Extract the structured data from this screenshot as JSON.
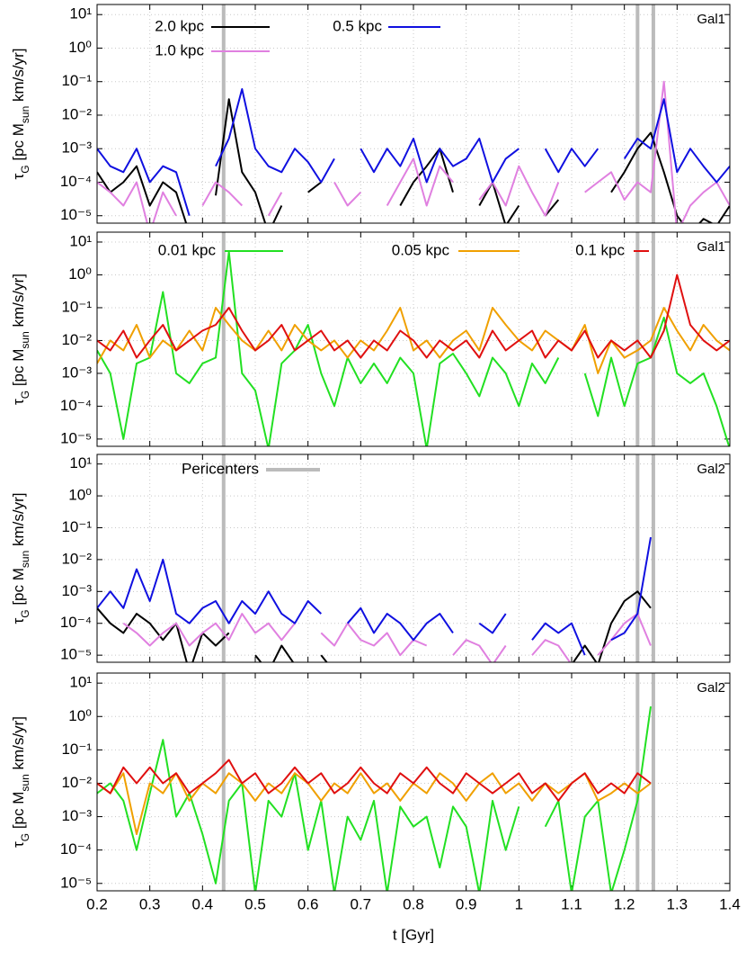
{
  "chart_data": [
    {
      "type": "line",
      "annotation": "Gal1",
      "ylabel": [
        "τ",
        "G",
        " [pc M",
        "sun",
        " km/s/yr]"
      ],
      "log_y": true,
      "grid": true,
      "show_xtick_labels": false,
      "xlim": [
        0.2,
        1.4
      ],
      "xticks": [
        0.2,
        0.3,
        0.4,
        0.5,
        0.6,
        0.7,
        0.8,
        0.9,
        1,
        1.1,
        1.2,
        1.3,
        1.4
      ],
      "ylim": [
        6e-06,
        20
      ],
      "yticks": [
        {
          "value": 1e-05,
          "label": "10⁻⁵"
        },
        {
          "value": 0.0001,
          "label": "10⁻⁴"
        },
        {
          "value": 0.001,
          "label": "10⁻³"
        },
        {
          "value": 0.01,
          "label": "10⁻²"
        },
        {
          "value": 0.1,
          "label": "10⁻¹"
        },
        {
          "value": 1,
          "label": "10⁰"
        },
        {
          "value": 10,
          "label": "10¹"
        }
      ],
      "pericenters": {
        "color": "#bbbbbb",
        "x": [
          0.44,
          1.225,
          1.255
        ]
      },
      "x": [
        0.2,
        0.225,
        0.25,
        0.275,
        0.3,
        0.325,
        0.35,
        0.375,
        0.4,
        0.425,
        0.45,
        0.475,
        0.5,
        0.525,
        0.55,
        0.575,
        0.6,
        0.625,
        0.65,
        0.675,
        0.7,
        0.725,
        0.75,
        0.775,
        0.8,
        0.825,
        0.85,
        0.875,
        0.9,
        0.925,
        0.95,
        0.975,
        1,
        1.025,
        1.05,
        1.075,
        1.1,
        1.125,
        1.15,
        1.175,
        1.2,
        1.225,
        1.25,
        1.275,
        1.3,
        1.325,
        1.35,
        1.375,
        1.4
      ],
      "series": [
        {
          "name": "2.0 kpc",
          "color": "#000000",
          "values": [
            0.0002,
            5e-05,
            0.0001,
            0.0003,
            2e-05,
            0.0001,
            5e-05,
            3e-06,
            null,
            4e-05,
            0.03,
            0.0002,
            5e-05,
            3e-06,
            2e-05,
            null,
            5e-05,
            0.0001,
            null,
            2e-05,
            null,
            8e-06,
            null,
            2e-05,
            0.0001,
            0.0003,
            0.001,
            5e-05,
            null,
            2e-05,
            0.0001,
            5e-06,
            2e-05,
            null,
            1e-05,
            3e-05,
            null,
            2e-05,
            null,
            5e-05,
            0.0002,
            0.001,
            0.003,
            0.0002,
            1e-05,
            3e-06,
            8e-06,
            5e-06,
            2e-05
          ]
        },
        {
          "name": "1.0 kpc",
          "color": "#e080e0",
          "values": [
            0.0001,
            5e-05,
            2e-05,
            0.0001,
            3e-06,
            5e-05,
            1e-05,
            null,
            2e-05,
            0.0001,
            5e-05,
            2e-05,
            null,
            1e-05,
            5e-05,
            null,
            3e-05,
            null,
            0.0001,
            2e-05,
            5e-05,
            null,
            2e-05,
            0.0001,
            0.0005,
            2e-05,
            0.0003,
            0.0001,
            null,
            3e-05,
            0.0001,
            2e-05,
            0.0003,
            5e-05,
            1e-05,
            0.0001,
            null,
            5e-05,
            0.0001,
            0.0002,
            3e-05,
            0.0001,
            5e-05,
            0.1,
            3e-06,
            2e-05,
            5e-05,
            0.0001,
            2e-05
          ]
        },
        {
          "name": "0.5 kpc",
          "color": "#1010e0",
          "values": [
            0.001,
            0.0003,
            0.0002,
            0.001,
            0.0001,
            0.0003,
            0.0002,
            1e-05,
            null,
            0.0003,
            0.002,
            0.06,
            0.001,
            0.0003,
            0.0002,
            0.001,
            0.0004,
            0.0001,
            0.0005,
            null,
            0.001,
            0.0002,
            0.001,
            0.0003,
            0.002,
            0.0001,
            0.001,
            0.0003,
            0.0005,
            0.002,
            0.0001,
            0.0005,
            0.001,
            null,
            0.001,
            0.0002,
            0.001,
            0.0003,
            0.001,
            null,
            0.0005,
            0.002,
            0.001,
            0.03,
            0.0002,
            0.001,
            0.0003,
            0.0001,
            0.0003
          ]
        }
      ]
    },
    {
      "type": "line",
      "annotation": "Gal1",
      "ylabel": [
        "τ",
        "G",
        " [pc M",
        "sun",
        " km/s/yr]"
      ],
      "log_y": true,
      "grid": true,
      "show_xtick_labels": false,
      "xlim": [
        0.2,
        1.4
      ],
      "xticks": [
        0.2,
        0.3,
        0.4,
        0.5,
        0.6,
        0.7,
        0.8,
        0.9,
        1,
        1.1,
        1.2,
        1.3,
        1.4
      ],
      "ylim": [
        6e-06,
        20
      ],
      "yticks": [
        {
          "value": 1e-05,
          "label": "10⁻⁵"
        },
        {
          "value": 0.0001,
          "label": "10⁻⁴"
        },
        {
          "value": 0.001,
          "label": "10⁻³"
        },
        {
          "value": 0.01,
          "label": "10⁻²"
        },
        {
          "value": 0.1,
          "label": "10⁻¹"
        },
        {
          "value": 1,
          "label": "10⁰"
        },
        {
          "value": 10,
          "label": "10¹"
        }
      ],
      "pericenters": {
        "color": "#bbbbbb",
        "x": [
          0.44,
          1.225,
          1.255
        ]
      },
      "x": [
        0.2,
        0.225,
        0.25,
        0.275,
        0.3,
        0.325,
        0.35,
        0.375,
        0.4,
        0.425,
        0.45,
        0.475,
        0.5,
        0.525,
        0.55,
        0.575,
        0.6,
        0.625,
        0.65,
        0.675,
        0.7,
        0.725,
        0.75,
        0.775,
        0.8,
        0.825,
        0.85,
        0.875,
        0.9,
        0.925,
        0.95,
        0.975,
        1,
        1.025,
        1.05,
        1.075,
        1.1,
        1.125,
        1.15,
        1.175,
        1.2,
        1.225,
        1.25,
        1.275,
        1.3,
        1.325,
        1.35,
        1.375,
        1.4
      ],
      "series": [
        {
          "name": "0.01 kpc",
          "color": "#22e022",
          "values": [
            0.005,
            0.001,
            1e-05,
            0.002,
            0.003,
            0.3,
            0.001,
            0.0005,
            0.002,
            0.003,
            5.0,
            0.001,
            0.0003,
            5e-06,
            0.002,
            0.005,
            0.03,
            0.001,
            0.0001,
            0.003,
            0.0005,
            0.002,
            0.0005,
            0.003,
            0.001,
            5e-06,
            0.002,
            0.004,
            0.001,
            0.0002,
            0.003,
            0.001,
            0.0001,
            0.002,
            0.0005,
            0.003,
            null,
            0.001,
            5e-05,
            0.003,
            0.0001,
            0.002,
            0.003,
            0.05,
            0.001,
            0.0005,
            0.001,
            0.0001,
            5e-06
          ]
        },
        {
          "name": "0.05 kpc",
          "color": "#f0a000",
          "values": [
            0.002,
            0.01,
            0.005,
            0.03,
            0.003,
            0.01,
            0.005,
            0.02,
            0.005,
            0.1,
            0.03,
            0.01,
            0.005,
            0.02,
            0.005,
            0.03,
            0.01,
            0.005,
            0.01,
            0.003,
            0.01,
            0.005,
            0.02,
            0.1,
            0.005,
            0.01,
            0.003,
            0.01,
            0.02,
            0.005,
            0.1,
            0.03,
            0.01,
            0.005,
            0.02,
            0.01,
            0.005,
            0.03,
            0.001,
            0.01,
            0.003,
            0.005,
            0.01,
            0.1,
            0.02,
            0.005,
            0.03,
            0.01,
            0.005
          ]
        },
        {
          "name": "0.1 kpc",
          "color": "#e01010",
          "values": [
            0.01,
            0.005,
            0.02,
            0.003,
            0.01,
            0.03,
            0.005,
            0.01,
            0.02,
            0.03,
            0.1,
            0.02,
            0.005,
            0.01,
            0.03,
            0.005,
            0.01,
            0.02,
            0.005,
            0.01,
            0.003,
            0.01,
            0.005,
            0.02,
            0.01,
            0.003,
            0.01,
            0.005,
            0.01,
            0.003,
            0.02,
            0.005,
            0.01,
            0.02,
            0.003,
            0.01,
            0.005,
            0.02,
            0.003,
            0.01,
            0.005,
            0.01,
            0.003,
            0.02,
            1.0,
            0.03,
            0.01,
            0.005,
            0.01
          ]
        }
      ]
    },
    {
      "type": "line",
      "annotation": "Gal2",
      "ylabel": [
        "τ",
        "G",
        " [pc M",
        "sun",
        " km/s/yr]"
      ],
      "log_y": true,
      "grid": true,
      "show_xtick_labels": false,
      "xlim": [
        0.2,
        1.4
      ],
      "xticks": [
        0.2,
        0.3,
        0.4,
        0.5,
        0.6,
        0.7,
        0.8,
        0.9,
        1,
        1.1,
        1.2,
        1.3,
        1.4
      ],
      "ylim": [
        6e-06,
        20
      ],
      "yticks": [
        {
          "value": 1e-05,
          "label": "10⁻⁵"
        },
        {
          "value": 0.0001,
          "label": "10⁻⁴"
        },
        {
          "value": 0.001,
          "label": "10⁻³"
        },
        {
          "value": 0.01,
          "label": "10⁻²"
        },
        {
          "value": 0.1,
          "label": "10⁻¹"
        },
        {
          "value": 1,
          "label": "10⁰"
        },
        {
          "value": 10,
          "label": "10¹"
        }
      ],
      "pericenters": {
        "name": "Pericenters",
        "color": "#bbbbbb",
        "x": [
          0.44,
          1.225,
          1.255
        ]
      },
      "x": [
        0.2,
        0.225,
        0.25,
        0.275,
        0.3,
        0.325,
        0.35,
        0.375,
        0.4,
        0.425,
        0.45,
        0.475,
        0.5,
        0.525,
        0.55,
        0.575,
        0.6,
        0.625,
        0.65,
        0.675,
        0.7,
        0.725,
        0.75,
        0.775,
        0.8,
        0.825,
        0.85,
        0.875,
        0.9,
        0.925,
        0.95,
        0.975,
        1,
        1.025,
        1.05,
        1.075,
        1.1,
        1.125,
        1.15,
        1.175,
        1.2,
        1.225,
        1.25
      ],
      "series": [
        {
          "color": "#000000",
          "values": [
            0.0003,
            0.0001,
            5e-05,
            0.0002,
            0.0001,
            3e-05,
            0.0001,
            3e-06,
            5e-05,
            2e-05,
            5e-05,
            null,
            1e-05,
            3e-06,
            2e-05,
            5e-06,
            null,
            1e-05,
            3e-06,
            null,
            5e-06,
            null,
            3e-06,
            null,
            null,
            5e-06,
            null,
            null,
            3e-06,
            null,
            null,
            5e-06,
            null,
            null,
            3e-06,
            null,
            5e-06,
            2e-05,
            5e-06,
            0.0001,
            0.0005,
            0.001,
            0.0003
          ]
        },
        {
          "color": "#e080e0",
          "values": [
            null,
            null,
            0.0001,
            5e-05,
            2e-05,
            5e-05,
            0.0001,
            2e-05,
            5e-05,
            0.0001,
            3e-05,
            0.0002,
            5e-05,
            0.0001,
            3e-05,
            0.0001,
            null,
            5e-05,
            2e-05,
            0.0001,
            3e-05,
            2e-05,
            5e-05,
            1e-05,
            3e-05,
            2e-05,
            null,
            1e-05,
            3e-05,
            2e-05,
            5e-06,
            2e-05,
            null,
            1e-05,
            3e-05,
            2e-05,
            5e-06,
            null,
            1e-05,
            3e-05,
            0.0001,
            0.0002,
            2e-05
          ]
        },
        {
          "color": "#1010e0",
          "values": [
            0.0003,
            0.001,
            0.0003,
            0.005,
            0.0005,
            0.01,
            0.0002,
            0.0001,
            0.0003,
            0.0005,
            0.0001,
            0.0005,
            0.0002,
            0.001,
            0.0002,
            0.0001,
            0.0005,
            0.0002,
            null,
            0.0001,
            0.0003,
            5e-05,
            0.0002,
            0.0001,
            3e-05,
            0.0001,
            0.0002,
            5e-05,
            null,
            0.0001,
            5e-05,
            0.0002,
            null,
            3e-05,
            0.0001,
            5e-05,
            0.0001,
            1e-05,
            null,
            3e-05,
            5e-05,
            0.0002,
            0.05
          ]
        }
      ]
    },
    {
      "type": "line",
      "annotation": "Gal2",
      "ylabel": [
        "τ",
        "G",
        " [pc M",
        "sun",
        " km/s/yr]"
      ],
      "xlabel": "t [Gyr]",
      "log_y": true,
      "grid": true,
      "show_xtick_labels": true,
      "xlim": [
        0.2,
        1.4
      ],
      "xticks": [
        0.2,
        0.3,
        0.4,
        0.5,
        0.6,
        0.7,
        0.8,
        0.9,
        1,
        1.1,
        1.2,
        1.3,
        1.4
      ],
      "ylim": [
        6e-06,
        20
      ],
      "yticks": [
        {
          "value": 1e-05,
          "label": "10⁻⁵"
        },
        {
          "value": 0.0001,
          "label": "10⁻⁴"
        },
        {
          "value": 0.001,
          "label": "10⁻³"
        },
        {
          "value": 0.01,
          "label": "10⁻²"
        },
        {
          "value": 0.1,
          "label": "10⁻¹"
        },
        {
          "value": 1,
          "label": "10⁰"
        },
        {
          "value": 10,
          "label": "10¹"
        }
      ],
      "pericenters": {
        "color": "#bbbbbb",
        "x": [
          0.44,
          1.225,
          1.255
        ]
      },
      "x": [
        0.2,
        0.225,
        0.25,
        0.275,
        0.3,
        0.325,
        0.35,
        0.375,
        0.4,
        0.425,
        0.45,
        0.475,
        0.5,
        0.525,
        0.55,
        0.575,
        0.6,
        0.625,
        0.65,
        0.675,
        0.7,
        0.725,
        0.75,
        0.775,
        0.8,
        0.825,
        0.85,
        0.875,
        0.9,
        0.925,
        0.95,
        0.975,
        1,
        1.025,
        1.05,
        1.075,
        1.1,
        1.125,
        1.15,
        1.175,
        1.2,
        1.225,
        1.25
      ],
      "series": [
        {
          "color": "#22e022",
          "values": [
            0.005,
            0.01,
            0.003,
            0.0001,
            0.005,
            0.2,
            0.001,
            0.005,
            0.0003,
            1e-05,
            0.003,
            0.01,
            5e-06,
            0.003,
            0.001,
            0.02,
            0.0001,
            0.003,
            5e-06,
            0.001,
            0.0002,
            0.003,
            5e-06,
            0.002,
            0.0005,
            0.001,
            3e-05,
            0.002,
            0.0005,
            5e-06,
            0.003,
            0.0001,
            0.002,
            null,
            0.0005,
            0.003,
            5e-06,
            0.001,
            0.003,
            5e-06,
            0.0001,
            0.003,
            2.0
          ]
        },
        {
          "color": "#f0a000",
          "values": [
            0.01,
            0.005,
            0.02,
            0.0003,
            0.01,
            0.005,
            0.02,
            0.003,
            0.01,
            0.005,
            0.02,
            0.01,
            0.003,
            0.01,
            0.005,
            0.02,
            0.01,
            0.003,
            0.01,
            0.005,
            0.02,
            0.005,
            0.01,
            0.003,
            0.01,
            0.005,
            0.02,
            0.01,
            0.003,
            0.01,
            0.02,
            0.005,
            0.01,
            0.003,
            0.01,
            0.005,
            0.01,
            0.02,
            0.003,
            0.005,
            0.01,
            0.005,
            0.01
          ]
        },
        {
          "color": "#e01010",
          "values": [
            0.01,
            0.005,
            0.03,
            0.01,
            0.03,
            0.01,
            0.02,
            0.005,
            0.01,
            0.02,
            0.05,
            0.01,
            0.02,
            0.005,
            0.01,
            0.03,
            0.01,
            0.02,
            0.005,
            0.01,
            0.03,
            0.01,
            0.005,
            0.02,
            0.01,
            0.03,
            0.01,
            0.005,
            0.02,
            0.01,
            0.005,
            0.01,
            0.02,
            0.005,
            0.01,
            0.003,
            0.01,
            0.02,
            0.005,
            0.01,
            0.005,
            0.02,
            0.01
          ]
        }
      ]
    }
  ]
}
